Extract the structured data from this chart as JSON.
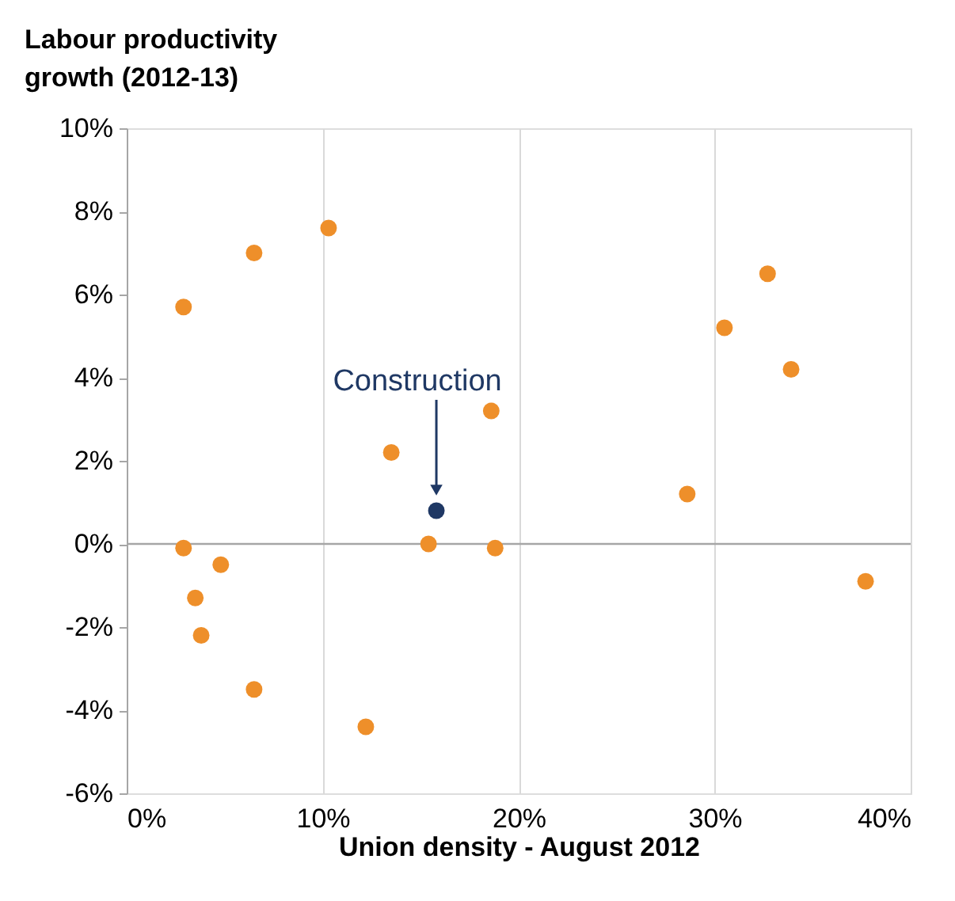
{
  "chart_data": {
    "type": "scatter",
    "xlabel": "Union density - August 2012",
    "ylabel": "Labour productivity growth (2012-13)",
    "series": [
      {
        "color": "#ee8f2a",
        "x": [
          2.9,
          6.5,
          10.3,
          2.9,
          4.8,
          3.5,
          3.8,
          6.5,
          12.2,
          13.5,
          15.4,
          18.6,
          18.8,
          28.6,
          30.5,
          32.7,
          33.9,
          37.7
        ],
        "values": [
          5.7,
          7.0,
          7.6,
          -0.1,
          -0.5,
          -1.3,
          -2.2,
          -3.5,
          -4.4,
          2.2,
          0.0,
          3.2,
          -0.1,
          1.2,
          5.2,
          6.5,
          4.2,
          -0.9
        ]
      },
      {
        "color": "#1f3864",
        "x": [
          15.8
        ],
        "values": [
          0.8
        ]
      }
    ],
    "annotations": [
      "Construction"
    ],
    "xlim": [
      0,
      40
    ],
    "xticks": [
      {
        "value": 0,
        "label": "0%"
      },
      {
        "value": 10,
        "label": "10%"
      },
      {
        "value": 20,
        "label": "20%"
      },
      {
        "value": 30,
        "label": "30%"
      },
      {
        "value": 40,
        "label": "40%"
      }
    ],
    "ylim": [
      -6,
      10
    ],
    "yticks": [
      {
        "value": -6,
        "label": "-6%"
      },
      {
        "value": -4,
        "label": "-4%"
      },
      {
        "value": -2,
        "label": "-2%"
      },
      {
        "value": 0,
        "label": "0%"
      },
      {
        "value": 2,
        "label": "2%"
      },
      {
        "value": 4,
        "label": "4%"
      },
      {
        "value": 6,
        "label": "6%"
      },
      {
        "value": 8,
        "label": "8%"
      },
      {
        "value": 10,
        "label": "10%"
      }
    ],
    "ref_lines": [
      {
        "axis": "y",
        "value": 0,
        "color": "#a6a6a6"
      }
    ],
    "grid": "x"
  }
}
